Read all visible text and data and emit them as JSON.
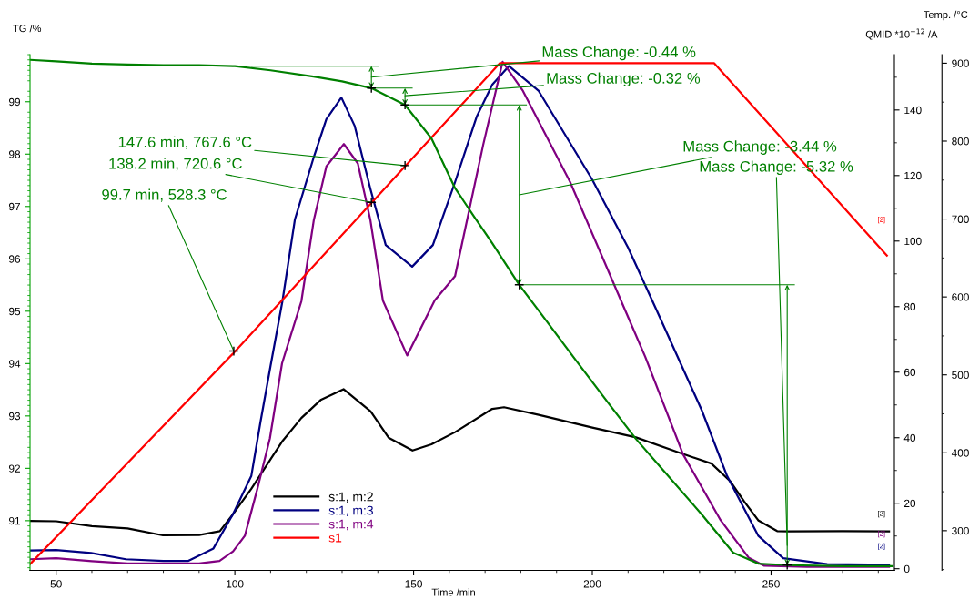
{
  "chart_data": {
    "type": "line",
    "xlabel": "Time /min",
    "ylabel": "TG /%",
    "y2label": "QMID *10$^{−12}$ /A",
    "y3label": "Temp. /°C",
    "xlim": [
      42.7,
      284.5
    ],
    "xticks": [
      50,
      100,
      150,
      200,
      250
    ],
    "ylim": [
      90.05,
      99.9
    ],
    "yticks": [
      91,
      92,
      93,
      94,
      95,
      96,
      97,
      98,
      99
    ],
    "y2lim": [
      -0.5,
      156.9
    ],
    "y2ticks": [
      0,
      20,
      40,
      60,
      80,
      100,
      120,
      140
    ],
    "y3lim": [
      249,
      911
    ],
    "y3ticks": [
      300,
      400,
      500,
      600,
      700,
      800,
      900
    ],
    "legend": "bottom",
    "series": [
      {
        "name": "s:1, m:2",
        "color": "#000000",
        "axis": "y2",
        "x": [
          42.7,
          50,
          60,
          70,
          79.9,
          90,
          95.8,
          99.5,
          104.6,
          113.2,
          118.6,
          124,
          130.4,
          138,
          143,
          149.7,
          155,
          161.6,
          172,
          175.3,
          185,
          200,
          212.2,
          224.4,
          233.3,
          238.5,
          242.5,
          246.4,
          251.7,
          255,
          270,
          283
        ],
        "values": [
          14.6,
          14.5,
          13,
          12.3,
          10.2,
          10.3,
          11.5,
          16.7,
          24.4,
          38.8,
          46,
          51.5,
          54.8,
          48,
          40,
          36.1,
          38,
          41.7,
          48.8,
          49.3,
          47,
          43.1,
          40.1,
          35.4,
          32.1,
          26.8,
          20.5,
          14.8,
          11.5,
          11.4,
          11.5,
          11.4
        ]
      },
      {
        "name": "s:1, m:3",
        "color": "#000080",
        "axis": "y2",
        "x": [
          42.7,
          50,
          59.8,
          69.5,
          80,
          87,
          94,
          99.5,
          104.6,
          107.2,
          110,
          113.3,
          116.8,
          122.1,
          125.6,
          129.8,
          133.5,
          137.9,
          142.2,
          149.6,
          155.4,
          161.6,
          167.7,
          172,
          176.7,
          185,
          199.9,
          210,
          217.9,
          230.6,
          237.7,
          246.4,
          253.4,
          265.7,
          283
        ],
        "values": [
          5.6,
          5.7,
          4.8,
          2.9,
          2.4,
          2.4,
          6.2,
          16.7,
          28.3,
          45,
          62,
          81.6,
          106.6,
          125.7,
          137.2,
          143.8,
          135.2,
          116,
          98.8,
          92.2,
          98.8,
          118,
          138.1,
          147.7,
          153.4,
          145.8,
          118.9,
          98,
          79.1,
          48.4,
          28.3,
          10.1,
          3.2,
          1.4,
          1.2
        ]
      },
      {
        "name": "s:1, m:4",
        "color": "#800080",
        "axis": "y2",
        "x": [
          42.7,
          50,
          60,
          70,
          80,
          90,
          95.7,
          99.5,
          102.8,
          106.3,
          109.8,
          113.2,
          118.6,
          122.1,
          125.6,
          130.5,
          134.4,
          137.9,
          141.4,
          148.2,
          155.9,
          161.6,
          169.5,
          174.9,
          180.6,
          193.8,
          209.1,
          214.8,
          225.4,
          235.9,
          243.8,
          248.1,
          260,
          283
        ],
        "values": [
          2.9,
          3.2,
          2.3,
          1.6,
          1.6,
          1.6,
          2.4,
          5.3,
          10.1,
          24.4,
          39.8,
          62.7,
          81.6,
          106.5,
          122.8,
          129.6,
          123.7,
          106.5,
          81.9,
          65.1,
          81.9,
          89.3,
          129.5,
          154.7,
          145.8,
          118,
          79.1,
          64.7,
          34.9,
          14.8,
          3.3,
          0.9,
          0.6,
          0.6
        ]
      },
      {
        "name": "s1",
        "color": "#ff0000",
        "axis": "y3",
        "x": [
          42.7,
          99.7,
          138.2,
          147.6,
          174.1,
          234.1,
          282.4
        ],
        "values": [
          257,
          528.3,
          720.6,
          767.6,
          900,
          900,
          653
        ]
      },
      {
        "color": "#008000",
        "x": [
          42.7,
          50,
          60,
          70,
          80,
          90,
          100,
          110,
          122,
          130,
          138.2,
          147.6,
          155,
          161.6,
          167,
          172,
          179.6,
          186,
          195,
          205,
          212.2,
          220,
          230.6,
          239.4,
          246.4,
          255,
          270,
          284
        ],
        "values": [
          99.8,
          99.77,
          99.73,
          99.71,
          99.7,
          99.7,
          99.68,
          99.6,
          99.48,
          99.39,
          99.26,
          98.94,
          98.3,
          97.35,
          96.8,
          96.3,
          95.5,
          94.92,
          94.1,
          93.2,
          92.56,
          91.95,
          91.12,
          90.39,
          90.18,
          90.15,
          90.13,
          90.13
        ]
      }
    ],
    "annotations": [
      "Mass Change: -0.44 %",
      "Mass Change: -0.32 %",
      "Mass Change: -3.44 %",
      "Mass Change: -5.32 %",
      {
        "text": "147.6 min, 767.6 °C",
        "x": 147.6,
        "y": 97.78
      },
      {
        "text": "138.2 min, 720.6 °C",
        "x": 138.2,
        "y": 97.08
      },
      {
        "text": "99.7 min, 528.3 °C",
        "x": 99.7,
        "y": 94.24
      },
      "[2]",
      "[2]",
      "[2]",
      "[2]"
    ]
  }
}
